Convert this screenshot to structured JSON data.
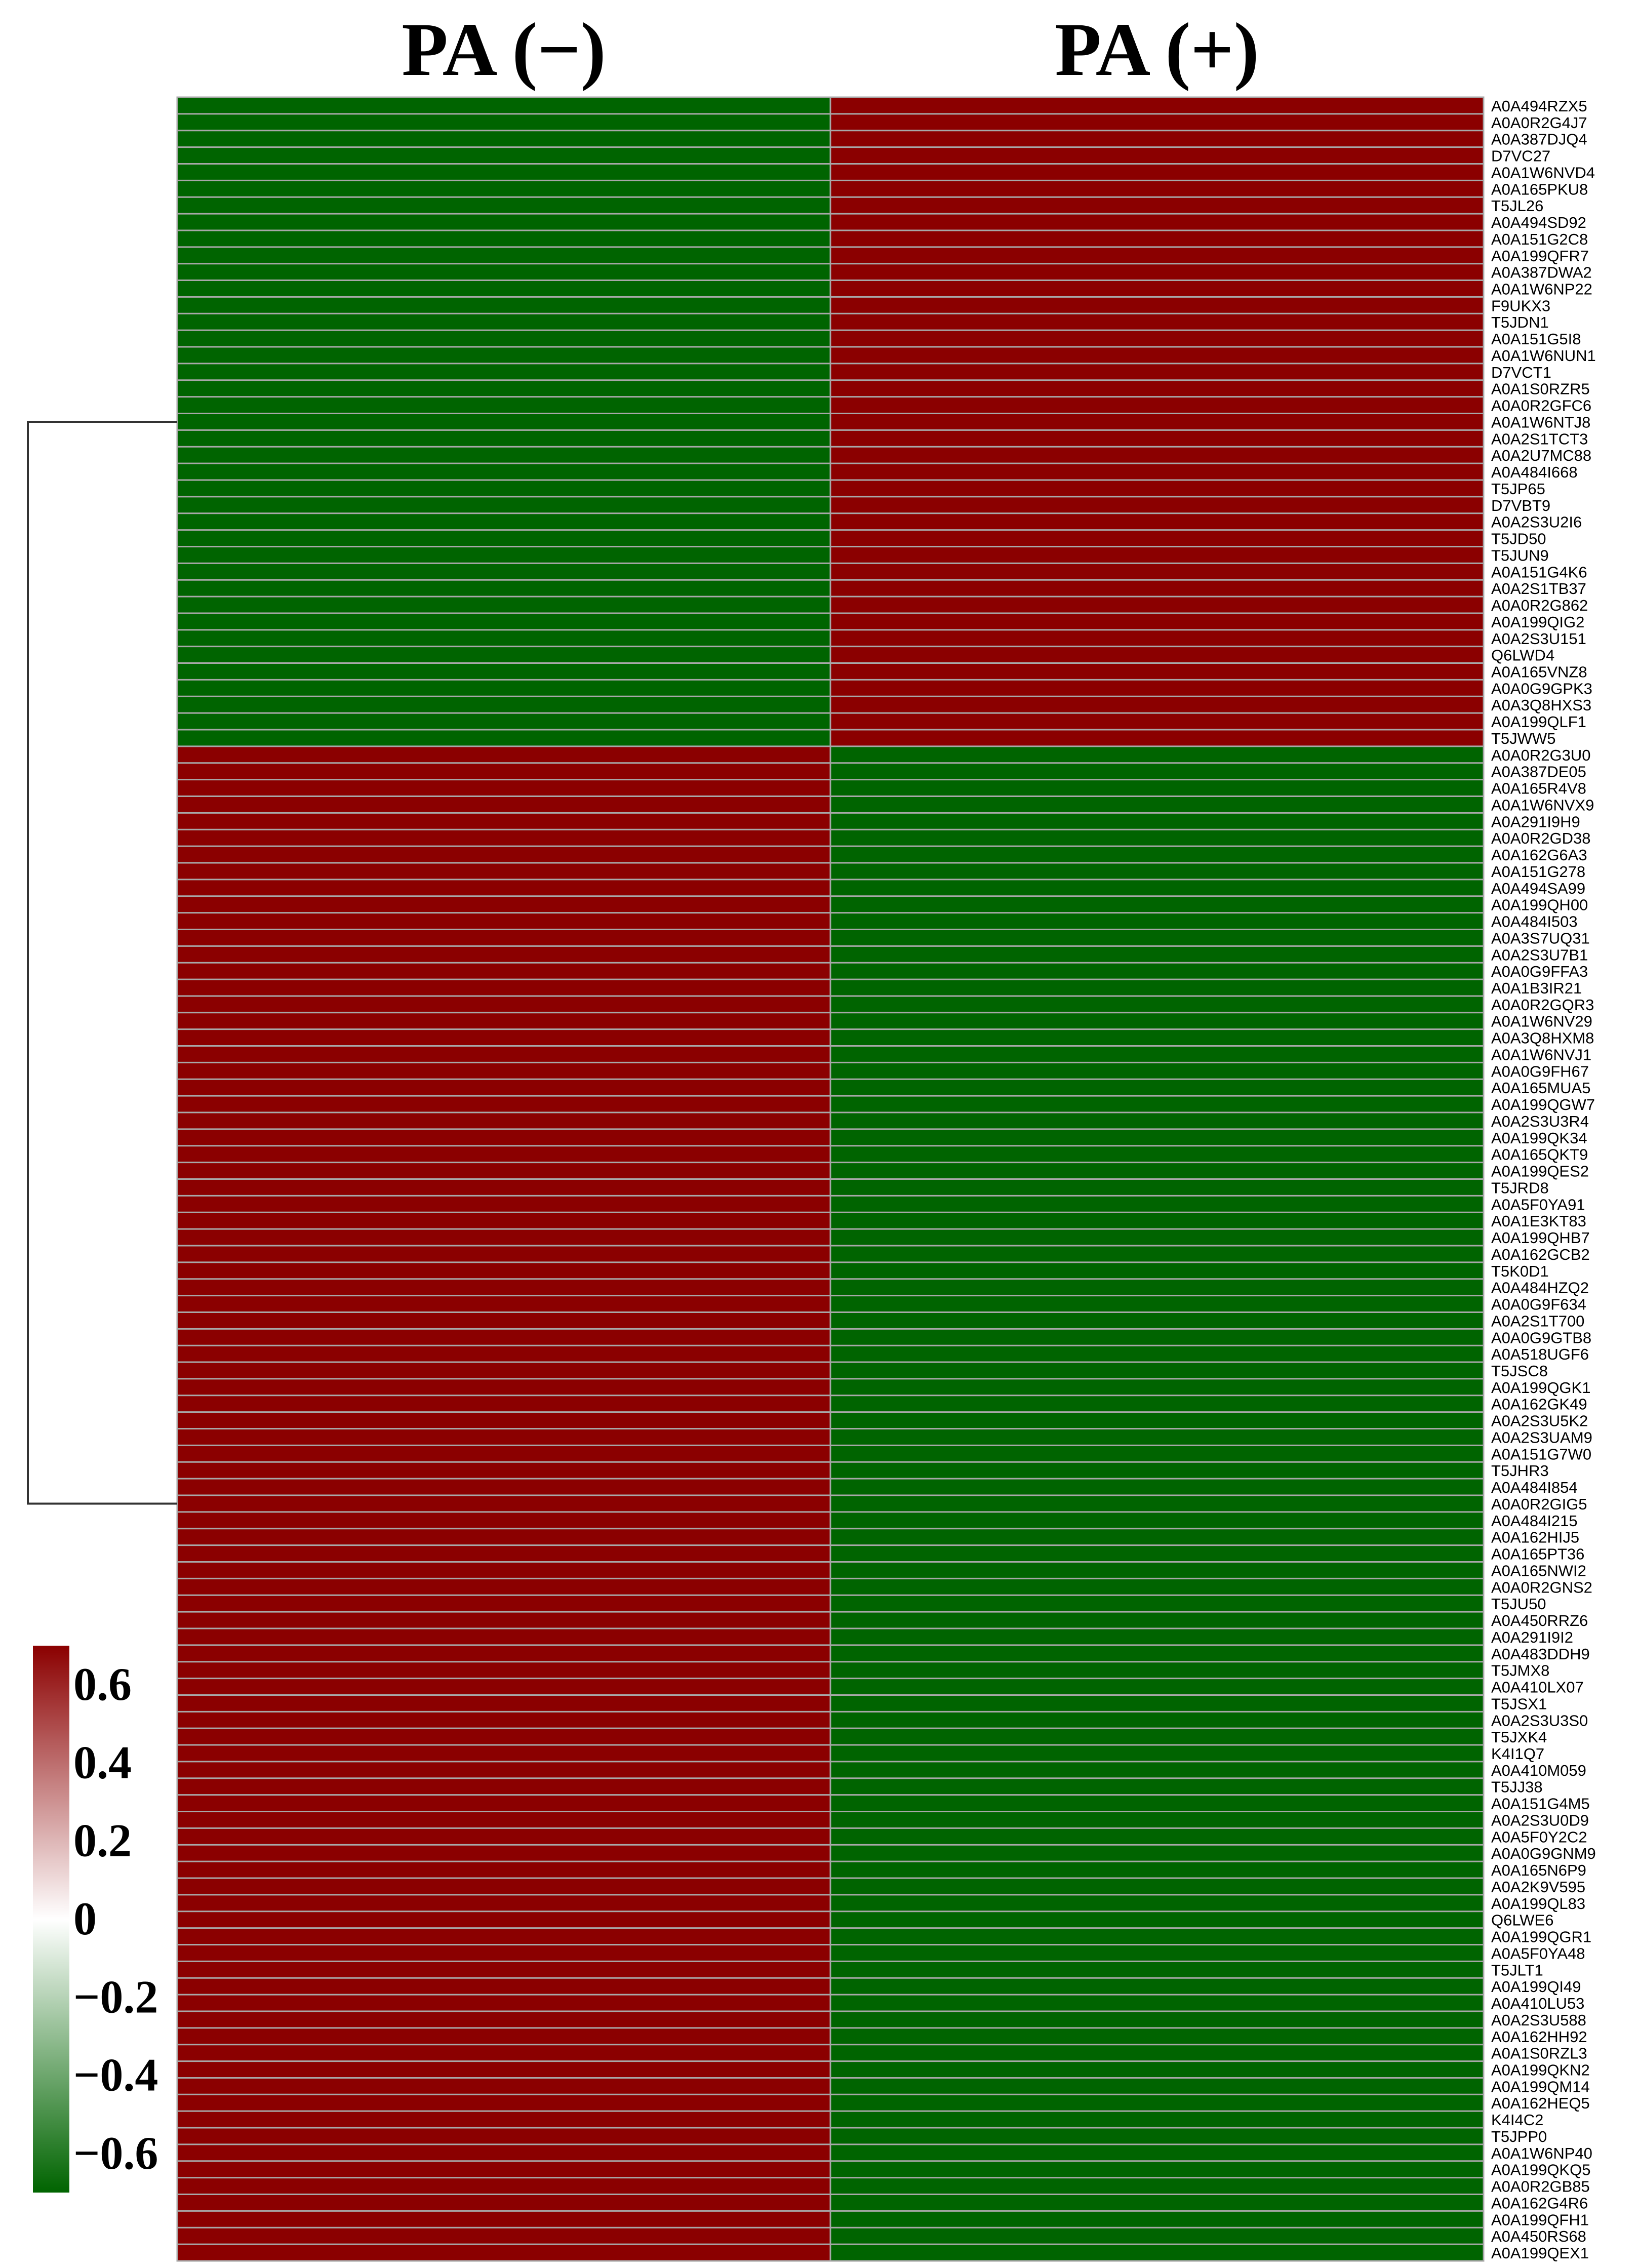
{
  "chart_data": {
    "type": "heatmap",
    "title": "",
    "xlabel": "",
    "ylabel": "",
    "columns": [
      "PA (−)",
      "PA (+)"
    ],
    "rows": [
      "A0A494RZX5",
      "A0A0R2G4J7",
      "A0A387DJQ4",
      "D7VC27",
      "A0A1W6NVD4",
      "A0A165PKU8",
      "T5JL26",
      "A0A494SD92",
      "A0A151G2C8",
      "A0A199QFR7",
      "A0A387DWA2",
      "A0A1W6NP22",
      "F9UKX3",
      "T5JDN1",
      "A0A151G5I8",
      "A0A1W6NUN1",
      "D7VCT1",
      "A0A1S0RZR5",
      "A0A0R2GFC6",
      "A0A1W6NTJ8",
      "A0A2S1TCT3",
      "A0A2U7MC88",
      "A0A484I668",
      "T5JP65",
      "D7VBT9",
      "A0A2S3U2I6",
      "T5JD50",
      "T5JUN9",
      "A0A151G4K6",
      "A0A2S1TB37",
      "A0A0R2G862",
      "A0A199QIG2",
      "A0A2S3U151",
      "Q6LWD4",
      "A0A165VNZ8",
      "A0A0G9GPK3",
      "A0A3Q8HXS3",
      "A0A199QLF1",
      "T5JWW5",
      "A0A0R2G3U0",
      "A0A387DE05",
      "A0A165R4V8",
      "A0A1W6NVX9",
      "A0A291I9H9",
      "A0A0R2GD38",
      "A0A162G6A3",
      "A0A151G278",
      "A0A494SA99",
      "A0A199QH00",
      "A0A484I503",
      "A0A3S7UQ31",
      "A0A2S3U7B1",
      "A0A0G9FFA3",
      "A0A1B3IR21",
      "A0A0R2GQR3",
      "A0A1W6NV29",
      "A0A3Q8HXM8",
      "A0A1W6NVJ1",
      "A0A0G9FH67",
      "A0A165MUA5",
      "A0A199QGW7",
      "A0A2S3U3R4",
      "A0A199QK34",
      "A0A165QKT9",
      "A0A199QES2",
      "T5JRD8",
      "A0A5F0YA91",
      "A0A1E3KT83",
      "A0A199QHB7",
      "A0A162GCB2",
      "T5K0D1",
      "A0A484HZQ2",
      "A0A0G9F634",
      "A0A2S1T700",
      "A0A0G9GTB8",
      "A0A518UGF6",
      "T5JSC8",
      "A0A199QGK1",
      "A0A162GK49",
      "A0A2S3U5K2",
      "A0A2S3UAM9",
      "A0A151G7W0",
      "T5JHR3",
      "A0A484I854",
      "A0A0R2GIG5",
      "A0A484I215",
      "A0A162HIJ5",
      "A0A165PT36",
      "A0A165NWI2",
      "A0A0R2GNS2",
      "T5JU50",
      "A0A450RRZ6",
      "A0A291I9I2",
      "A0A483DDH9",
      "T5JMX8",
      "A0A410LX07",
      "T5JSX1",
      "A0A2S3U3S0",
      "T5JXK4",
      "K4I1Q7",
      "A0A410M059",
      "T5JJ38",
      "A0A151G4M5",
      "A0A2S3U0D9",
      "A0A5F0Y2C2",
      "A0A0G9GNM9",
      "A0A165N6P9",
      "A0A2K9V595",
      "A0A199QL83",
      "Q6LWE6",
      "A0A199QGR1",
      "A0A5F0YA48",
      "T5JLT1",
      "A0A199QI49",
      "A0A410LU53",
      "A0A2S3U588",
      "A0A162HH92",
      "A0A1S0RZL3",
      "A0A199QKN2",
      "A0A199QM14",
      "A0A162HEQ5",
      "K4I4C2",
      "T5JPP0",
      "A0A1W6NP40",
      "A0A199QKQ5",
      "A0A0R2GB85",
      "A0A162G4R6",
      "A0A199QFH1",
      "A0A450RS68",
      "A0A199QEX1"
    ],
    "cluster_1_count": 39,
    "values_cluster_1": [
      -0.7,
      0.7
    ],
    "values_cluster_2": [
      0.7,
      -0.7
    ],
    "color_scale": {
      "min": -0.7,
      "max": 0.7,
      "low_color": "#006400",
      "mid_color": "#ffffff",
      "high_color": "#8b0000",
      "ticks": [
        "0.6",
        "0.4",
        "0.2",
        "0",
        "−0.2",
        "−0.4",
        "−0.6"
      ],
      "tick_values": [
        0.6,
        0.4,
        0.2,
        0,
        -0.2,
        -0.4,
        -0.6
      ]
    },
    "legend_position": "bottom-left",
    "row_dendrogram": true,
    "grid": false
  }
}
